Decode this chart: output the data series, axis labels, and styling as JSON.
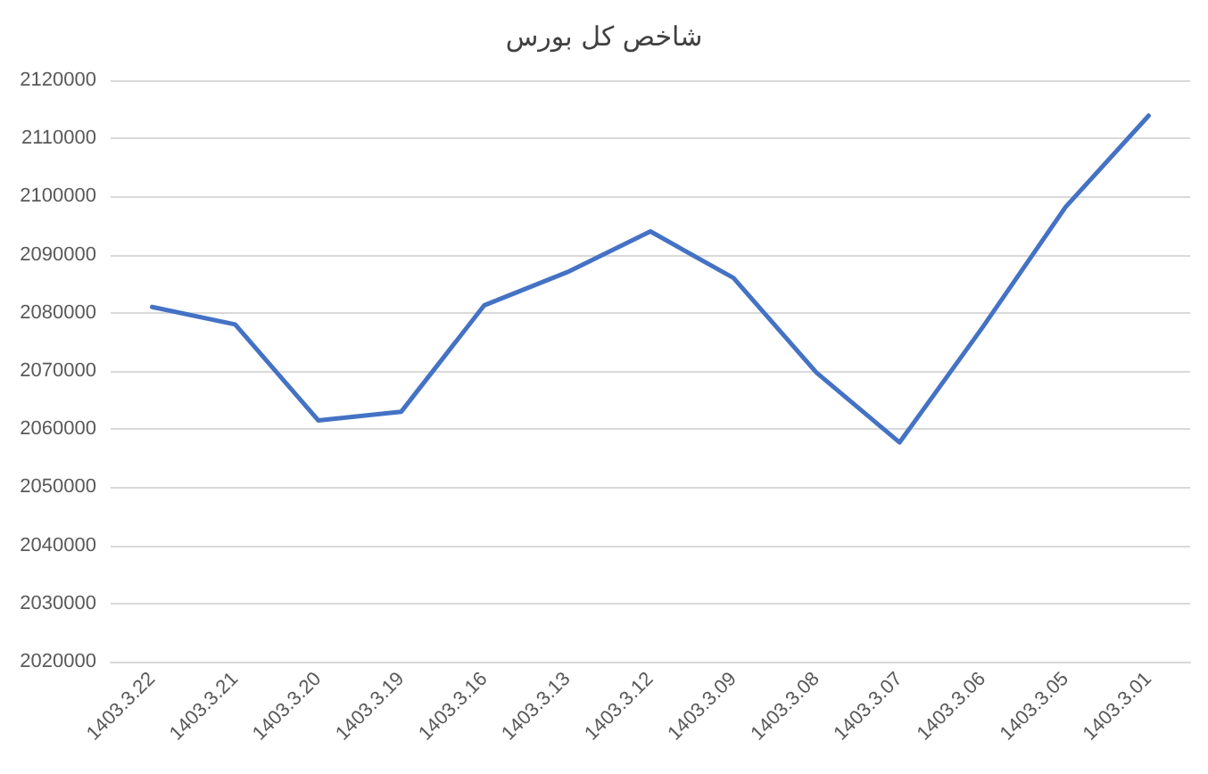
{
  "chart_data": {
    "type": "line",
    "title": "شاخص کل بورس",
    "categories": [
      "1403.3.22",
      "1403.3.21",
      "1403.3.20",
      "1403.3.19",
      "1403.3.16",
      "1403.3.13",
      "1403.3.12",
      "1403.3.09",
      "1403.3.08",
      "1403.3.07",
      "1403.3.06",
      "1403.3.05",
      "1403.3.01"
    ],
    "series": [
      {
        "color": "#4472c4",
        "values": [
          2081000,
          2078000,
          2061500,
          2063000,
          2081300,
          2087000,
          2094000,
          2086000,
          2069700,
          2057700,
          2077500,
          2098200,
          2113900
        ]
      }
    ],
    "ylim": [
      2020000,
      2120000
    ],
    "yticks": [
      2020000,
      2030000,
      2040000,
      2050000,
      2060000,
      2070000,
      2080000,
      2090000,
      2100000,
      2110000,
      2120000
    ],
    "grid": "y",
    "marker": "none",
    "line_style": "solid"
  }
}
